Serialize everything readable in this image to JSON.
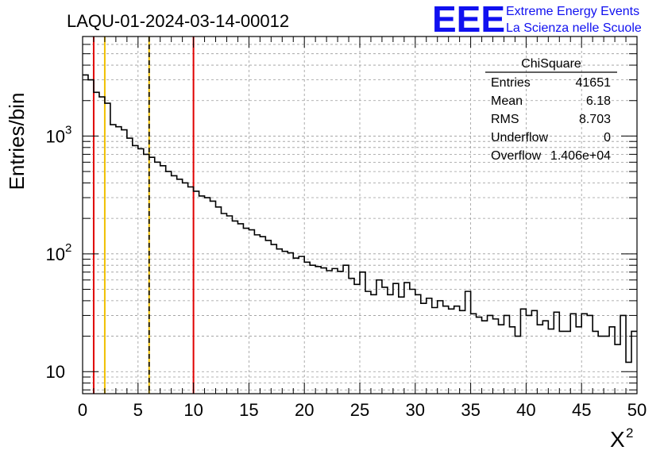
{
  "chart_data": {
    "type": "histogram",
    "title": "LAQU-01-2024-03-14-00012",
    "xlabel": "X",
    "xlabel_superscript": "2",
    "ylabel": "Entries/bin",
    "xlim": [
      0,
      50
    ],
    "ylim": [
      6.5,
      7000
    ],
    "yscale": "log",
    "grid": true,
    "x_ticks": [
      "0",
      "5",
      "10",
      "15",
      "20",
      "25",
      "30",
      "35",
      "40",
      "45",
      "50"
    ],
    "y_tick_labels": [
      {
        "base": "10",
        "exp": ""
      },
      {
        "base": "10",
        "exp": "2"
      },
      {
        "base": "10",
        "exp": "3"
      }
    ],
    "bin_width": 0.5,
    "counts": [
      3300,
      3000,
      2350,
      2150,
      1900,
      1250,
      1200,
      1130,
      960,
      830,
      780,
      700,
      660,
      600,
      560,
      500,
      460,
      430,
      400,
      370,
      340,
      310,
      300,
      280,
      250,
      220,
      210,
      190,
      180,
      165,
      160,
      145,
      140,
      130,
      120,
      110,
      105,
      102,
      92,
      95,
      85,
      80,
      78,
      76,
      72,
      75,
      71,
      80,
      62,
      55,
      70,
      48,
      45,
      60,
      52,
      45,
      56,
      43,
      57,
      50,
      45,
      38,
      42,
      35,
      40,
      36,
      34,
      36,
      33,
      48,
      31,
      29,
      27,
      30,
      28,
      25,
      30,
      24,
      20,
      34,
      30,
      33,
      25,
      27,
      23,
      32,
      22,
      22,
      31,
      24,
      31,
      30,
      22,
      20,
      20,
      24,
      17,
      30,
      12,
      22
    ],
    "vertical_lines": [
      {
        "x": 1,
        "color": "#e00000",
        "style": "solid"
      },
      {
        "x": 2,
        "color": "#f0c000",
        "style": "solid"
      },
      {
        "x": 6,
        "color": "#f0c000",
        "style": "solid"
      },
      {
        "x": 6,
        "color": "#000000",
        "style": "dashed"
      },
      {
        "x": 10,
        "color": "#e00000",
        "style": "solid"
      }
    ],
    "line_color": "#000000"
  },
  "logo": {
    "mark": "EEE",
    "line1": "Extreme Energy Events",
    "line2": "La Scienza nelle Scuole",
    "color": "#1010f0"
  },
  "stats": {
    "header": "ChiSquare",
    "rows": [
      {
        "label": "Entries",
        "value": "41651"
      },
      {
        "label": "Mean",
        "value": "6.18"
      },
      {
        "label": "RMS",
        "value": "8.703"
      },
      {
        "label": "Underflow",
        "value": "0"
      },
      {
        "label": "Overflow",
        "value": "1.406e+04"
      }
    ]
  }
}
